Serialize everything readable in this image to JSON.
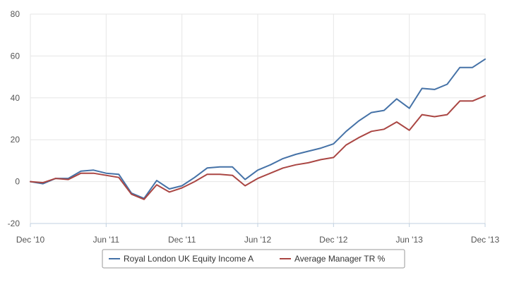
{
  "chart_data": {
    "type": "line",
    "title": "",
    "xlabel": "",
    "ylabel": "",
    "ylim": [
      -20,
      80
    ],
    "y_ticks": [
      "80",
      "60",
      "40",
      "20",
      "0",
      "-20"
    ],
    "x_ticks": [
      "Dec '10",
      "Jun '11",
      "Dec '11",
      "Jun '12",
      "Dec '12",
      "Jun '13",
      "Dec '13"
    ],
    "grid": true,
    "legend_position": "bottom",
    "x": [
      "Dec '10",
      "Jan '11",
      "Feb '11",
      "Mar '11",
      "Apr '11",
      "May '11",
      "Jun '11",
      "Jul '11",
      "Aug '11",
      "Sep '11",
      "Oct '11",
      "Nov '11",
      "Dec '11",
      "Jan '12",
      "Feb '12",
      "Mar '12",
      "Apr '12",
      "May '12",
      "Jun '12",
      "Jul '12",
      "Aug '12",
      "Sep '12",
      "Oct '12",
      "Nov '12",
      "Dec '12",
      "Jan '13",
      "Feb '13",
      "Mar '13",
      "Apr '13",
      "May '13",
      "Jun '13",
      "Jul '13",
      "Aug '13",
      "Sep '13",
      "Oct '13",
      "Nov '13",
      "Dec '13"
    ],
    "series": [
      {
        "name": "Royal London UK Equity Income A",
        "color": "#4572a7",
        "values": [
          0,
          -1,
          1.5,
          1.5,
          5,
          5.5,
          4,
          3.5,
          -5.5,
          -8,
          0.5,
          -3.5,
          -2,
          2,
          6.5,
          7,
          7,
          1,
          5.5,
          8,
          11,
          13,
          14.5,
          16,
          18,
          24,
          29,
          33,
          34,
          39.5,
          35,
          44.5,
          44,
          46.5,
          54.5,
          54.5,
          58.5
        ]
      },
      {
        "name": "Average Manager TR %",
        "color": "#aa4643",
        "values": [
          0,
          -0.5,
          1.5,
          1,
          4,
          4,
          3,
          2,
          -6,
          -8.5,
          -1.5,
          -5,
          -3,
          0,
          3.5,
          3.5,
          3,
          -2,
          1.5,
          4,
          6.5,
          8,
          9,
          10.5,
          11.5,
          17.5,
          21,
          24,
          25,
          28.5,
          24.5,
          32,
          31,
          32,
          38.5,
          38.5,
          41
        ]
      }
    ]
  }
}
